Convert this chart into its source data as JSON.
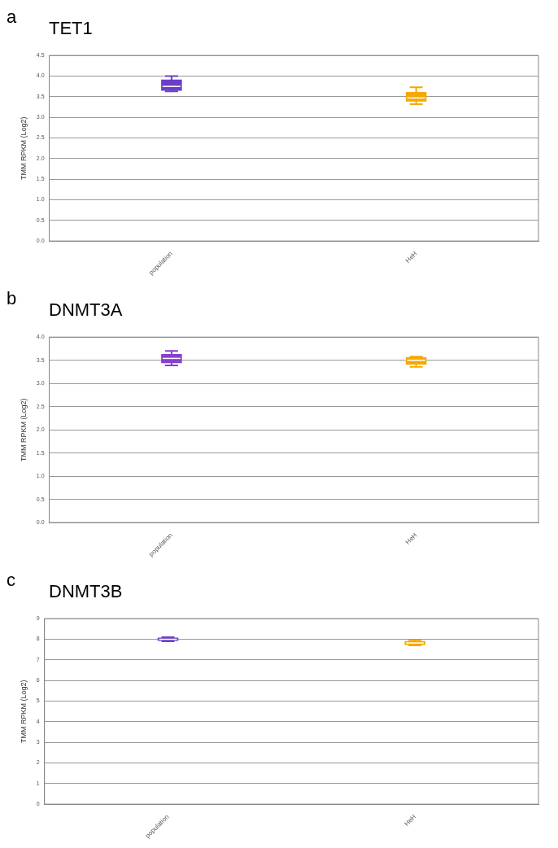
{
  "chart_data": [
    {
      "type": "box",
      "title": "TET1",
      "annotations": [
        "a"
      ],
      "ylabel": "TMM RPKM (Log2)",
      "categories": [
        "population",
        "HeH"
      ],
      "colors": [
        "#6a3fc8",
        "#f5a800"
      ],
      "boxes": [
        {
          "low": 3.63,
          "q1": 3.66,
          "median": 3.75,
          "q3": 3.9,
          "high": 4.0
        },
        {
          "low": 3.32,
          "q1": 3.4,
          "median": 3.47,
          "q3": 3.6,
          "high": 3.73
        }
      ],
      "ylim": [
        0,
        4.5
      ],
      "yticks": [
        {
          "value": 0,
          "label": "0.0"
        },
        0.5,
        {
          "value": 1,
          "label": "1.0"
        },
        1.5,
        {
          "value": 2,
          "label": "2.0"
        },
        2.5,
        {
          "value": 3,
          "label": "3.0"
        },
        3.5,
        {
          "value": 4,
          "label": "4.0"
        },
        4.5
      ],
      "grid": "y"
    },
    {
      "type": "box",
      "title": "DNMT3A",
      "annotations": [
        "b"
      ],
      "ylabel": "TMM RPKM (Log2)",
      "categories": [
        "population",
        "HeH"
      ],
      "colors": [
        "#8a3fd0",
        "#f5a800"
      ],
      "boxes": [
        {
          "low": 3.39,
          "q1": 3.45,
          "median": 3.54,
          "q3": 3.62,
          "high": 3.7
        },
        {
          "low": 3.36,
          "q1": 3.42,
          "median": 3.5,
          "q3": 3.55,
          "high": 3.58
        }
      ],
      "ylim": [
        0,
        4
      ],
      "yticks": [
        {
          "value": 0,
          "label": "0.0"
        },
        0.5,
        {
          "value": 1,
          "label": "1.0"
        },
        1.5,
        {
          "value": 2,
          "label": "2.0"
        },
        2.5,
        {
          "value": 3,
          "label": "3.0"
        },
        3.5,
        {
          "value": 4,
          "label": "4.0"
        }
      ],
      "grid": "y"
    },
    {
      "type": "box",
      "title": "DNMT3B",
      "annotations": [
        "c"
      ],
      "ylabel": "TMM RPKM (Log2)",
      "categories": [
        "population",
        "HeH"
      ],
      "colors": [
        "#6a3fc8",
        "#f5a800"
      ],
      "boxes": [
        {
          "low": 7.9,
          "q1": 7.95,
          "median": 8.0,
          "q3": 8.05,
          "high": 8.1
        },
        {
          "low": 7.7,
          "q1": 7.75,
          "median": 7.82,
          "q3": 7.88,
          "high": 7.95
        }
      ],
      "ylim": [
        0,
        9
      ],
      "yticks": [
        0,
        1,
        2,
        3,
        4,
        5,
        6,
        7,
        8,
        9
      ],
      "grid": "y"
    }
  ]
}
